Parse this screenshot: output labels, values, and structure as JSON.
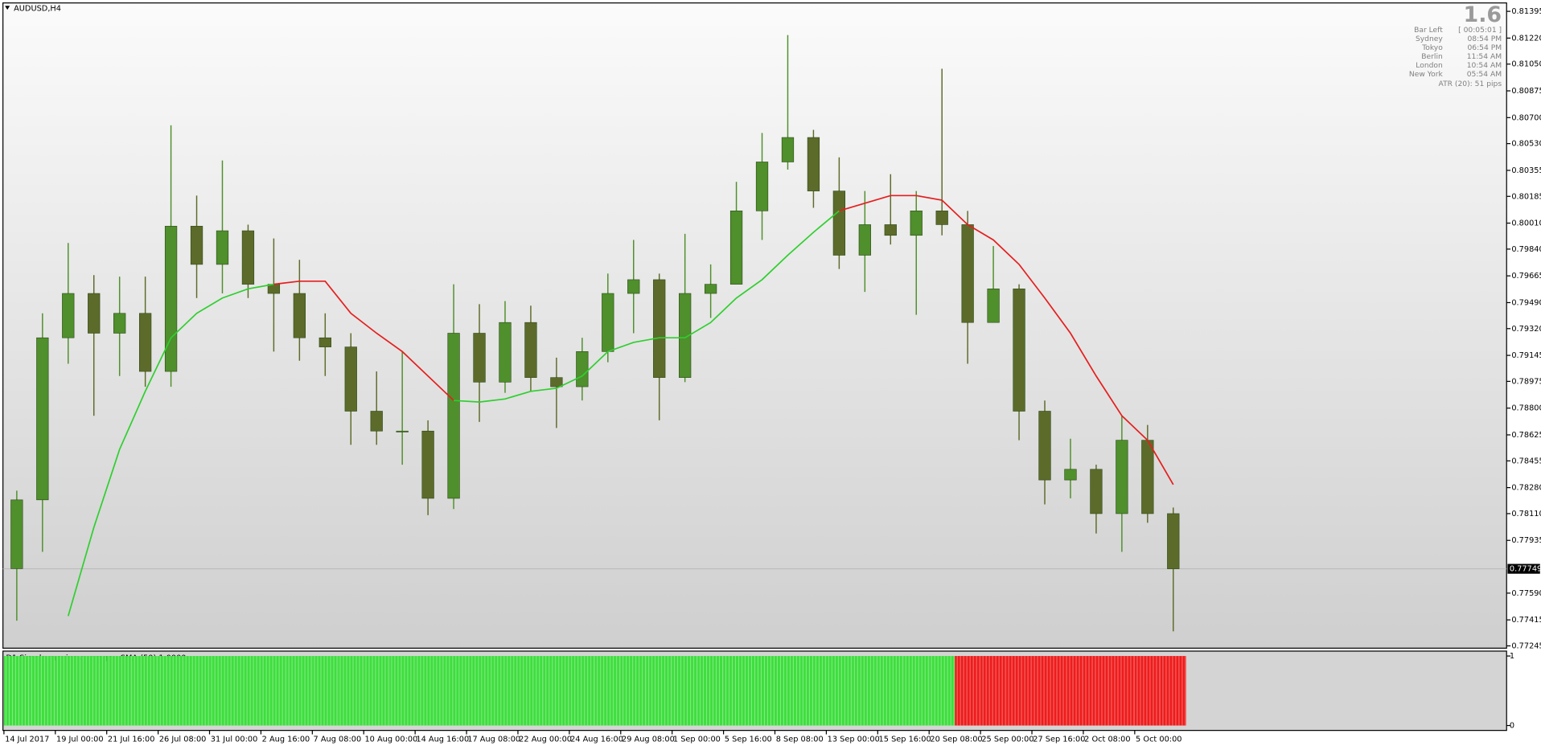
{
  "chart_data": [
    {
      "type": "candlestick",
      "title": "AUDUSD,H4",
      "categories": [
        "14 Jul 2017",
        null,
        "19 Jul 00:00",
        null,
        "21 Jul 16:00",
        null,
        "26 Jul 08:00",
        null,
        "31 Jul 00:00",
        null,
        "2 Aug 16:00",
        null,
        "7 Aug 08:00",
        null,
        "10 Aug 00:00",
        null,
        "14 Aug 16:00",
        null,
        "17 Aug 08:00",
        null,
        "22 Aug 00:00",
        null,
        "24 Aug 16:00",
        null,
        "29 Aug 08:00",
        null,
        "1 Sep 00:00",
        null,
        "5 Sep 16:00",
        null,
        "8 Sep 08:00",
        null,
        "13 Sep 00:00",
        null,
        "15 Sep 16:00",
        null,
        "20 Sep 08:00",
        null,
        "25 Sep 00:00",
        null,
        "27 Sep 16:00",
        null,
        "2 Oct 08:00",
        null,
        "5 Oct 00:00",
        null
      ],
      "open": [
        0.7775,
        0.782,
        0.7926,
        0.7955,
        0.7929,
        0.7942,
        0.7904,
        0.7999,
        0.7974,
        0.7996,
        0.7961,
        0.7955,
        0.7926,
        0.792,
        0.7878,
        0.7865,
        0.7865,
        0.7821,
        0.7929,
        0.7897,
        0.7936,
        0.79,
        0.7894,
        0.7917,
        0.7955,
        0.7964,
        0.79,
        0.7955,
        0.7961,
        0.8009,
        0.8041,
        0.8057,
        0.8022,
        0.798,
        0.8,
        0.7993,
        0.8009,
        0.8,
        0.7936,
        0.7958,
        0.7878,
        0.7833,
        0.784,
        0.7811,
        0.7859,
        0.7811
      ],
      "high": [
        0.7826,
        0.7942,
        0.7988,
        0.7967,
        0.7966,
        0.7966,
        0.8065,
        0.8019,
        0.8042,
        0.8,
        0.7991,
        0.7977,
        0.7942,
        0.7929,
        0.7904,
        0.7917,
        0.7872,
        0.7961,
        0.7948,
        0.795,
        0.7947,
        0.7913,
        0.7926,
        0.7968,
        0.799,
        0.7968,
        0.7994,
        0.7974,
        0.8028,
        0.806,
        0.8124,
        0.8062,
        0.8044,
        0.8022,
        0.8033,
        0.8022,
        0.8102,
        0.8009,
        0.7986,
        0.7961,
        0.7885,
        0.786,
        0.7843,
        0.7875,
        0.7869,
        0.7815
      ],
      "low": [
        0.7741,
        0.7786,
        0.7909,
        0.7875,
        0.7901,
        0.7894,
        0.7894,
        0.7952,
        0.7955,
        0.7952,
        0.7917,
        0.7911,
        0.7901,
        0.7856,
        0.7856,
        0.7843,
        0.781,
        0.7814,
        0.7871,
        0.789,
        0.7891,
        0.7867,
        0.7885,
        0.791,
        0.7929,
        0.7872,
        0.7897,
        0.7939,
        0.7961,
        0.799,
        0.8036,
        0.8011,
        0.7971,
        0.7956,
        0.7987,
        0.7941,
        0.7993,
        0.7909,
        0.7936,
        0.7859,
        0.7817,
        0.7821,
        0.7798,
        0.7786,
        0.7805,
        0.7734
      ],
      "close": [
        0.782,
        0.7926,
        0.7955,
        0.7929,
        0.7942,
        0.7904,
        0.7999,
        0.7974,
        0.7996,
        0.7961,
        0.7955,
        0.7926,
        0.792,
        0.7878,
        0.7865,
        0.7865,
        0.7821,
        0.7929,
        0.7897,
        0.7936,
        0.79,
        0.7894,
        0.7917,
        0.7955,
        0.7964,
        0.79,
        0.7955,
        0.7961,
        0.8009,
        0.8041,
        0.8057,
        0.8022,
        0.798,
        0.8,
        0.7993,
        0.8009,
        0.8,
        0.7936,
        0.7958,
        0.7878,
        0.7833,
        0.784,
        0.7811,
        0.7859,
        0.7811,
        0.77749
      ],
      "up_color": "#4f8f2c",
      "down_color": "#5d6b2a",
      "moving_average": {
        "values": [
          null,
          null,
          0.7744,
          0.7802,
          0.7853,
          0.7891,
          0.7926,
          0.7942,
          0.7952,
          0.7958,
          0.7961,
          0.7963,
          0.7963,
          0.7942,
          0.7929,
          0.7917,
          0.7901,
          0.7885,
          0.7884,
          0.7886,
          0.7891,
          0.7893,
          0.7901,
          0.7917,
          0.7923,
          0.7926,
          0.7926,
          0.7936,
          0.7952,
          0.7964,
          0.798,
          0.7995,
          0.8009,
          0.8014,
          0.8019,
          0.8019,
          0.8016,
          0.8,
          0.799,
          0.7974,
          0.7952,
          0.7929,
          0.7901,
          0.7875,
          0.7859,
          0.783
        ],
        "colors": [
          "#2fcf2f",
          "#2fcf2f",
          "#2fcf2f",
          "#2fcf2f",
          "#2fcf2f",
          "#2fcf2f",
          "#2fcf2f",
          "#2fcf2f",
          "#2fcf2f",
          "#2fcf2f",
          "#2fcf2f",
          "#e61e1e",
          "#e61e1e",
          "#e61e1e",
          "#e61e1e",
          "#e61e1e",
          "#e61e1e",
          "#e61e1e",
          "#2fcf2f",
          "#2fcf2f",
          "#2fcf2f",
          "#2fcf2f",
          "#2fcf2f",
          "#2fcf2f",
          "#2fcf2f",
          "#2fcf2f",
          "#2fcf2f",
          "#2fcf2f",
          "#2fcf2f",
          "#2fcf2f",
          "#2fcf2f",
          "#2fcf2f",
          "#2fcf2f",
          "#e61e1e",
          "#e61e1e",
          "#e61e1e",
          "#e61e1e",
          "#e61e1e",
          "#e61e1e",
          "#e61e1e",
          "#e61e1e",
          "#e61e1e",
          "#e61e1e",
          "#e61e1e",
          "#e61e1e",
          "#e61e1e"
        ]
      },
      "last_price": 0.77749,
      "ylim": [
        0.7723,
        0.8145
      ],
      "yticks": [
        {
          "value": 0.81395,
          "label": "0.81395"
        },
        {
          "value": 0.8122,
          "label": "0.81220"
        },
        {
          "value": 0.8105,
          "label": "0.81050"
        },
        {
          "value": 0.80875,
          "label": "0.80875"
        },
        {
          "value": 0.807,
          "label": "0.80700"
        },
        {
          "value": 0.8053,
          "label": "0.80530"
        },
        {
          "value": 0.80355,
          "label": "0.80355"
        },
        {
          "value": 0.80185,
          "label": "0.80185"
        },
        {
          "value": 0.8001,
          "label": "0.80010"
        },
        {
          "value": 0.7984,
          "label": "0.79840"
        },
        {
          "value": 0.79665,
          "label": "0.79665"
        },
        {
          "value": 0.7949,
          "label": "0.79490"
        },
        {
          "value": 0.7932,
          "label": "0.79320"
        },
        {
          "value": 0.79145,
          "label": "0.79145"
        },
        {
          "value": 0.78975,
          "label": "0.78975"
        },
        {
          "value": 0.788,
          "label": "0.78800"
        },
        {
          "value": 0.78625,
          "label": "0.78625"
        },
        {
          "value": 0.78455,
          "label": "0.78455"
        },
        {
          "value": 0.7828,
          "label": "0.78280"
        },
        {
          "value": 0.7811,
          "label": "0.78110"
        },
        {
          "value": 0.77935,
          "label": "0.77935"
        },
        {
          "value": 0.7759,
          "label": "0.77590"
        },
        {
          "value": 0.77415,
          "label": "0.77415"
        },
        {
          "value": 0.77245,
          "label": "0.77245"
        }
      ]
    },
    {
      "type": "bar",
      "title": "D1 Simple moving average - SMA (50) 1.0000",
      "values": [
        1,
        1,
        1,
        1,
        1,
        1,
        1,
        1,
        1,
        1,
        1,
        1,
        1,
        1,
        1,
        1,
        1,
        1,
        1,
        1,
        1,
        1,
        1,
        1,
        1,
        1,
        1,
        1,
        1,
        1,
        1,
        1,
        1,
        1,
        1,
        1,
        1,
        1,
        1,
        1,
        1,
        1,
        1,
        1,
        1,
        1
      ],
      "colors": [
        "#3ede3e",
        "#3ede3e",
        "#3ede3e",
        "#3ede3e",
        "#3ede3e",
        "#3ede3e",
        "#3ede3e",
        "#3ede3e",
        "#3ede3e",
        "#3ede3e",
        "#3ede3e",
        "#3ede3e",
        "#3ede3e",
        "#3ede3e",
        "#3ede3e",
        "#3ede3e",
        "#3ede3e",
        "#3ede3e",
        "#3ede3e",
        "#3ede3e",
        "#3ede3e",
        "#3ede3e",
        "#3ede3e",
        "#3ede3e",
        "#3ede3e",
        "#3ede3e",
        "#3ede3e",
        "#3ede3e",
        "#3ede3e",
        "#3ede3e",
        "#3ede3e",
        "#3ede3e",
        "#3ede3e",
        "#3ede3e",
        "#3ede3e",
        "#3ede3e",
        "#3ede3e",
        "#ee1c1c",
        "#ee1c1c",
        "#ee1c1c",
        "#ee1c1c",
        "#ee1c1c",
        "#ee1c1c",
        "#ee1c1c",
        "#ee1c1c",
        "#ee1c1c"
      ],
      "ylim": [
        0,
        1
      ],
      "yticks": [
        0,
        1
      ]
    }
  ],
  "info_panel": {
    "spread": "1.6",
    "rows": [
      [
        "Bar Left",
        "[ 00:05:01 ]"
      ],
      [
        "Sydney",
        "08:54 PM"
      ],
      [
        "Tokyo",
        "06:54 PM"
      ],
      [
        "Berlin",
        "11:54 AM"
      ],
      [
        "London",
        "10:54 AM"
      ],
      [
        "New York",
        "05:54 AM"
      ]
    ],
    "atr": "ATR (20): 51 pips"
  }
}
